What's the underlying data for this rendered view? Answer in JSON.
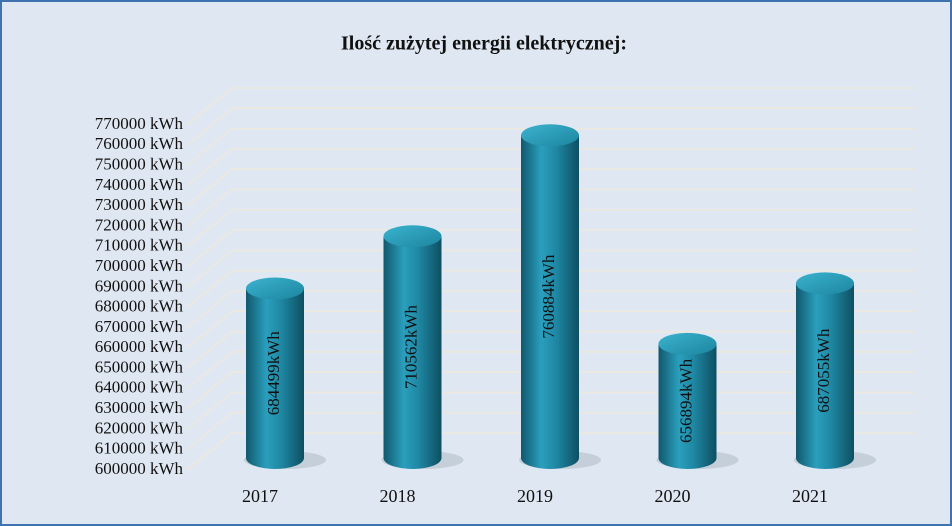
{
  "chart_data": {
    "type": "bar3d",
    "title": "Ilość zużytej energii elektrycznej:",
    "categories": [
      "2017",
      "2018",
      "2019",
      "2020",
      "2021"
    ],
    "values": [
      684499,
      710562,
      760884,
      656894,
      687055
    ],
    "value_labels": [
      "684499kWh",
      "710562kWh",
      "760884kWh",
      "656894kWh",
      "687055kWh"
    ],
    "color": "#1f8aa6",
    "ylim": [
      600000,
      770000
    ],
    "yticks": [
      {
        "value": 600000,
        "label": "600000 kWh"
      },
      {
        "value": 610000,
        "label": "610000 kWh"
      },
      {
        "value": 620000,
        "label": "620000 kWh"
      },
      {
        "value": 630000,
        "label": "630000 kWh"
      },
      {
        "value": 640000,
        "label": "640000 kWh"
      },
      {
        "value": 650000,
        "label": "650000 kWh"
      },
      {
        "value": 660000,
        "label": "660000 kWh"
      },
      {
        "value": 670000,
        "label": "670000 kWh"
      },
      {
        "value": 680000,
        "label": "680000 kWh"
      },
      {
        "value": 690000,
        "label": "690000 kWh"
      },
      {
        "value": 700000,
        "label": "700000 kWh"
      },
      {
        "value": 710000,
        "label": "710000 kWh"
      },
      {
        "value": 720000,
        "label": "720000 kWh"
      },
      {
        "value": 730000,
        "label": "730000 kWh"
      },
      {
        "value": 740000,
        "label": "740000 kWh"
      },
      {
        "value": 750000,
        "label": "750000 kWh"
      },
      {
        "value": 760000,
        "label": "760000 kWh"
      },
      {
        "value": 770000,
        "label": "770000 kWh"
      }
    ],
    "grid": true
  }
}
